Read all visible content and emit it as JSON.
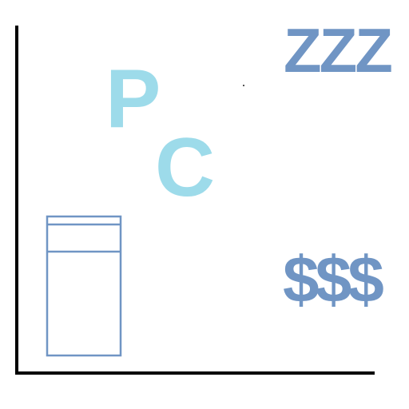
{
  "labels": {
    "p": "P",
    "c": "C",
    "zzz": "ZZZ",
    "dollars": "$$$"
  },
  "colors": {
    "light_blue": "#9ddbea",
    "steel_blue": "#7095c4",
    "axis": "#000000"
  },
  "icons": {
    "bed": "bed-icon"
  }
}
